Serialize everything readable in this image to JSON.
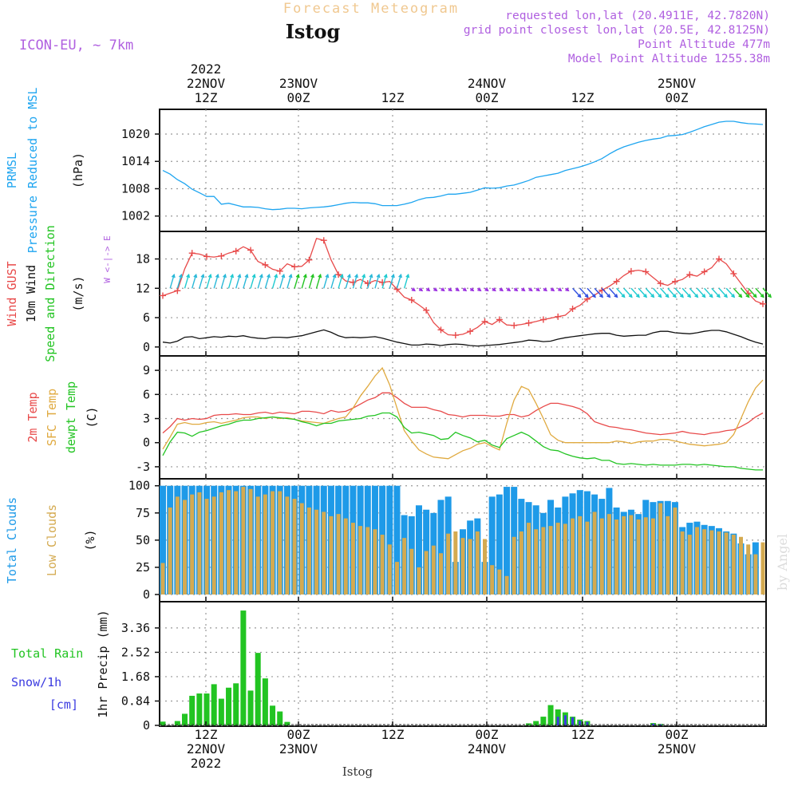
{
  "header": {
    "forecast_title": "Forecast Meteogram",
    "station": "Istog",
    "model": "ICON-EU, ~ 7km",
    "requested": "requested lon,lat (20.4911E, 42.7820N)",
    "gridpoint": "grid point closest lon,lat (20.5E, 42.8125N)",
    "point_alt": "Point Altitude 477m",
    "model_alt": "Model Point Altitude 1255.38m",
    "credit": "by Angel",
    "bottom_label": "Istog"
  },
  "colors": {
    "pressure": "#1ea5f0",
    "gust": "#e84a4a",
    "wind": "#111111",
    "arrows_n": "#1ecad0",
    "arrows_s": "#9a2de0",
    "temp": "#e84a4a",
    "sfc": "#e0aa40",
    "dew": "#22c422",
    "total_clouds": "#1e9ae8",
    "low_clouds": "#d4aa50",
    "rain": "#22c422",
    "snow": "#3a3ae0",
    "purple": "#b060e0",
    "orange": "#f0c890"
  },
  "chart_data": [
    {
      "type": "line",
      "panel": "pressure",
      "label_lines": [
        "PRMSL",
        "Pressure Reduced to MSL"
      ],
      "unit": "(hPa)",
      "ylim": [
        999.5,
        1023.5
      ],
      "yticks": [
        "1002",
        "1008",
        "1014",
        "1020"
      ],
      "ytick_values": [
        1002,
        1008,
        1014,
        1020
      ],
      "series": [
        {
          "name": "PRMSL",
          "values": [
            1012,
            1011.2,
            1010,
            1009.1,
            1007.9,
            1007.1,
            1006.3,
            1006.3,
            1004.6,
            1004.8,
            1004.4,
            1004.0,
            1004.0,
            1003.9,
            1003.6,
            1003.4,
            1003.5,
            1003.7,
            1003.7,
            1003.6,
            1003.8,
            1003.9,
            1004.0,
            1004.2,
            1004.5,
            1004.8,
            1005.0,
            1004.9,
            1004.9,
            1004.7,
            1004.3,
            1004.3,
            1004.3,
            1004.6,
            1005.0,
            1005.6,
            1006.0,
            1006.1,
            1006.4,
            1006.8,
            1006.8,
            1007.0,
            1007.2,
            1007.7,
            1008.2,
            1008.1,
            1008.2,
            1008.6,
            1008.8,
            1009.3,
            1009.8,
            1010.5,
            1010.8,
            1011.1,
            1011.4,
            1012.0,
            1012.4,
            1012.8,
            1013.3,
            1013.9,
            1014.6,
            1015.6,
            1016.5,
            1017.2,
            1017.7,
            1018.2,
            1018.6,
            1018.9,
            1019.1,
            1019.6,
            1019.7,
            1019.9,
            1020.4,
            1021.0,
            1021.6,
            1022.1,
            1022.6,
            1022.8,
            1022.8,
            1022.5,
            1022.3,
            1022.2,
            1022.1
          ]
        }
      ]
    },
    {
      "type": "line",
      "panel": "wind",
      "label_lines": [
        "Wind GUST",
        "10m Wind",
        "Speed and Direction"
      ],
      "unit": "(m/s)",
      "ylim": [
        -1.5,
        22
      ],
      "yticks": [
        "0",
        "6",
        "12",
        "18"
      ],
      "ytick_values": [
        0,
        6,
        12,
        18
      ],
      "compass": "W <-|-> E",
      "series": [
        {
          "name": "Wind GUST",
          "values": [
            10.5,
            11,
            11.5,
            16,
            19.2,
            19,
            18.5,
            18.4,
            18.6,
            19.2,
            19.6,
            20.5,
            19.8,
            17.5,
            16.8,
            15.9,
            15.5,
            17,
            16.4,
            16.5,
            17.8,
            22.2,
            21.8,
            17.8,
            14.8,
            13.5,
            13.2,
            13.8,
            13,
            13.6,
            13.2,
            13.4,
            11.8,
            10.2,
            9.6,
            8.6,
            7.5,
            5,
            3.5,
            2.5,
            2.4,
            2.6,
            3.2,
            4,
            5.2,
            4.6,
            5.6,
            4.5,
            4.4,
            4.6,
            4.9,
            5.2,
            5.6,
            5.9,
            6.2,
            6.5,
            7.8,
            8.5,
            9.8,
            10.6,
            11.6,
            12.4,
            13.4,
            14.6,
            15.5,
            15.7,
            15.4,
            14.2,
            13,
            12.6,
            13.4,
            13.8,
            14.8,
            14.5,
            15.4,
            16.2,
            18,
            17,
            15,
            13,
            11,
            9.4,
            8.8
          ]
        },
        {
          "name": "10m Wind",
          "values": [
            1,
            0.8,
            1.2,
            2,
            2.1,
            1.7,
            1.9,
            2.1,
            2,
            2.2,
            2.1,
            2.3,
            2,
            1.8,
            1.7,
            2,
            2,
            1.9,
            2.1,
            2.3,
            2.7,
            3.1,
            3.5,
            3,
            2.3,
            1.9,
            2,
            1.9,
            2,
            2.1,
            1.8,
            1.4,
            1,
            0.7,
            0.4,
            0.4,
            0.6,
            0.5,
            0.3,
            0.5,
            0.6,
            0.5,
            0.3,
            0.2,
            0.3,
            0.4,
            0.5,
            0.7,
            0.9,
            1.1,
            1.4,
            1.3,
            1.1,
            1.2,
            1.6,
            1.9,
            2.1,
            2.3,
            2.5,
            2.7,
            2.8,
            2.8,
            2.4,
            2.2,
            2.3,
            2.4,
            2.4,
            2.9,
            3.2,
            3.2,
            2.9,
            2.8,
            2.7,
            2.9,
            3.2,
            3.4,
            3.4,
            3.1,
            2.6,
            2.1,
            1.5,
            1,
            0.6
          ]
        }
      ]
    },
    {
      "type": "line",
      "panel": "temperature",
      "label_lines": [
        "2m Temp",
        "SFC Temp",
        "dewpt Temp"
      ],
      "unit": "(C)",
      "ylim": [
        -4.2,
        10.4
      ],
      "yticks": [
        "-3",
        "0",
        "3",
        "6",
        "9"
      ],
      "ytick_values": [
        -3,
        0,
        3,
        6,
        9
      ],
      "series": [
        {
          "name": "2m Temp",
          "values": [
            1.2,
            2,
            3,
            2.8,
            3,
            2.9,
            3,
            3.4,
            3.5,
            3.5,
            3.6,
            3.5,
            3.5,
            3.7,
            3.8,
            3.6,
            3.8,
            3.7,
            3.6,
            3.9,
            3.9,
            3.8,
            3.6,
            4,
            3.8,
            3.9,
            4.3,
            4.8,
            5.3,
            5.6,
            6.2,
            6.2,
            5.6,
            4.9,
            4.4,
            4.4,
            4.4,
            4.1,
            3.9,
            3.5,
            3.4,
            3.2,
            3.4,
            3.4,
            3.4,
            3.3,
            3.3,
            3.5,
            3.5,
            3.2,
            3.4,
            4,
            4.5,
            4.9,
            4.9,
            4.7,
            4.5,
            4.2,
            3.6,
            2.6,
            2.3,
            2.0,
            1.9,
            1.7,
            1.6,
            1.4,
            1.2,
            1.1,
            1.0,
            1.1,
            1.2,
            1.4,
            1.2,
            1.1,
            1.0,
            1.2,
            1.3,
            1.5,
            1.6,
            2.0,
            2.5,
            3.2,
            3.7
          ]
        },
        {
          "name": "SFC Temp",
          "values": [
            -0.8,
            0.7,
            2.3,
            2.5,
            2.3,
            2.3,
            2.5,
            2.6,
            2.4,
            2.6,
            2.8,
            3.1,
            3.2,
            3.2,
            3.0,
            3.2,
            3.0,
            3.1,
            2.9,
            2.7,
            2.6,
            2.5,
            2.4,
            2.7,
            3,
            3.2,
            4.3,
            5.8,
            7,
            8.3,
            9.3,
            7.2,
            4.3,
            1.5,
            0.2,
            -0.9,
            -1.4,
            -1.8,
            -1.9,
            -2.0,
            -1.5,
            -1.0,
            -0.7,
            -0.2,
            0.0,
            -0.5,
            -0.9,
            2.4,
            5.3,
            7.0,
            6.6,
            4.9,
            3.0,
            1.0,
            0.3,
            0.0,
            0.0,
            0.0,
            0.0,
            0.0,
            0.0,
            0.0,
            0.2,
            0.1,
            -0.1,
            0.1,
            0.2,
            0.2,
            0.4,
            0.4,
            0.2,
            0.0,
            -0.2,
            -0.3,
            -0.4,
            -0.3,
            -0.2,
            0.0,
            1.0,
            3.0,
            5.1,
            6.8,
            7.8
          ]
        },
        {
          "name": "dewpt Temp",
          "values": [
            -1.6,
            0.1,
            1.3,
            1.2,
            0.8,
            1.3,
            1.5,
            1.8,
            2.1,
            2.3,
            2.6,
            2.8,
            2.8,
            3.0,
            3.1,
            3.2,
            3.1,
            3.0,
            2.9,
            2.6,
            2.4,
            2.1,
            2.4,
            2.4,
            2.7,
            2.8,
            2.9,
            3.0,
            3.3,
            3.4,
            3.7,
            3.7,
            3.2,
            1.9,
            1.2,
            1.3,
            1.1,
            0.9,
            0.4,
            0.5,
            1.3,
            0.9,
            0.6,
            0.1,
            0.3,
            -0.3,
            -0.6,
            0.5,
            0.9,
            1.3,
            0.9,
            0.2,
            -0.5,
            -0.9,
            -1.0,
            -1.4,
            -1.7,
            -1.9,
            -2.0,
            -1.9,
            -2.2,
            -2.2,
            -2.6,
            -2.7,
            -2.6,
            -2.7,
            -2.8,
            -2.7,
            -2.8,
            -2.8,
            -2.8,
            -2.7,
            -2.7,
            -2.8,
            -2.7,
            -2.8,
            -2.9,
            -3.0,
            -3.0,
            -3.2,
            -3.3,
            -3.4,
            -3.4
          ]
        }
      ]
    },
    {
      "type": "bar",
      "panel": "clouds",
      "label_lines": [
        "Total Clouds",
        "Low Clouds"
      ],
      "unit": "(%)",
      "ylim": [
        0,
        102
      ],
      "yticks": [
        "0",
        "25",
        "50",
        "75",
        "100"
      ],
      "ytick_values": [
        0,
        25,
        50,
        75,
        100
      ],
      "series": [
        {
          "name": "Total Clouds",
          "values": [
            100,
            100,
            100,
            100,
            100,
            100,
            100,
            100,
            100,
            100,
            100,
            100,
            100,
            100,
            100,
            100,
            100,
            100,
            100,
            100,
            100,
            100,
            100,
            100,
            100,
            100,
            100,
            100,
            100,
            100,
            100,
            100,
            100,
            73,
            72,
            82,
            78,
            75,
            87,
            90,
            30,
            60,
            68,
            70,
            30,
            90,
            92,
            99,
            99,
            88,
            85,
            82,
            75,
            87,
            80,
            90,
            93,
            96,
            95,
            92,
            88,
            98,
            80,
            76,
            78,
            74,
            87,
            85,
            86,
            86,
            85,
            62,
            66,
            67,
            64,
            63,
            61,
            58,
            56,
            47,
            37,
            48,
            0
          ]
        },
        {
          "name": "Low Clouds",
          "values": [
            29,
            80,
            90,
            87,
            92,
            94,
            88,
            90,
            94,
            96,
            95,
            99,
            97,
            90,
            92,
            95,
            95,
            90,
            88,
            84,
            80,
            78,
            76,
            72,
            74,
            70,
            66,
            63,
            62,
            60,
            55,
            46,
            30,
            52,
            42,
            25,
            40,
            45,
            38,
            56,
            58,
            52,
            51,
            58,
            51,
            27,
            23,
            17,
            53,
            58,
            66,
            60,
            62,
            63,
            66,
            65,
            70,
            72,
            67,
            76,
            70,
            74,
            69,
            72,
            73,
            69,
            71,
            70,
            84,
            72,
            80,
            58,
            55,
            62,
            60,
            59,
            58,
            57,
            55,
            53,
            46,
            37,
            48
          ]
        }
      ]
    },
    {
      "type": "bar",
      "panel": "precip",
      "label_lines": [
        "Total  Rain",
        "Snow/1h",
        "[cm]"
      ],
      "unit": "1hr Precip (mm)",
      "ylim": [
        0,
        4.1
      ],
      "yticks": [
        "0",
        "0.84",
        "1.68",
        "2.52",
        "3.36"
      ],
      "ytick_values": [
        0,
        0.84,
        1.68,
        2.52,
        3.36
      ],
      "series": [
        {
          "name": "Total Rain",
          "values": [
            0.13,
            0,
            0.15,
            0.4,
            1.02,
            1.1,
            1.1,
            1.42,
            0.92,
            1.3,
            1.45,
            3.96,
            1.2,
            2.5,
            1.62,
            0.68,
            0.48,
            0.12,
            0,
            0,
            0,
            0,
            0,
            0,
            0,
            0,
            0,
            0,
            0,
            0,
            0,
            0,
            0,
            0,
            0,
            0,
            0,
            0,
            0,
            0,
            0,
            0,
            0,
            0,
            0,
            0,
            0,
            0,
            0,
            0,
            0.07,
            0.15,
            0.3,
            0.7,
            0.55,
            0.45,
            0.3,
            0.2,
            0.15,
            0,
            0,
            0,
            0,
            0,
            0,
            0,
            0,
            0.08,
            0.05,
            0,
            0,
            0,
            0,
            0,
            0,
            0,
            0,
            0,
            0,
            0,
            0,
            0,
            0
          ]
        },
        {
          "name": "Snow/1h",
          "values": [
            0,
            0,
            0,
            0,
            0,
            0,
            0,
            0,
            0,
            0,
            0,
            0,
            0,
            0,
            0,
            0,
            0,
            0,
            0,
            0,
            0,
            0,
            0,
            0,
            0,
            0,
            0,
            0,
            0,
            0,
            0,
            0,
            0,
            0,
            0,
            0,
            0,
            0,
            0,
            0,
            0,
            0,
            0,
            0,
            0,
            0,
            0,
            0,
            0,
            0,
            0,
            0,
            0,
            0,
            0.3,
            0.35,
            0.28,
            0.16,
            0.12,
            0,
            0,
            0,
            0,
            0,
            0,
            0,
            0,
            0.06,
            0.04,
            0,
            0,
            0,
            0,
            0,
            0,
            0,
            0,
            0,
            0,
            0,
            0,
            0,
            0
          ]
        }
      ]
    }
  ],
  "time_axis": {
    "top_ticks": [
      {
        "lines": [
          "2022",
          "22NOV",
          "12Z"
        ]
      },
      {
        "lines": [
          "23NOV",
          "00Z"
        ]
      },
      {
        "lines": [
          "12Z"
        ]
      },
      {
        "lines": [
          "24NOV",
          "00Z"
        ]
      },
      {
        "lines": [
          "12Z"
        ]
      },
      {
        "lines": [
          "25NOV",
          "00Z"
        ]
      }
    ],
    "bottom_ticks": [
      {
        "lines": [
          "12Z",
          "22NOV",
          "2022"
        ]
      },
      {
        "lines": [
          "00Z",
          "23NOV"
        ]
      },
      {
        "lines": [
          "12Z"
        ]
      },
      {
        "lines": [
          "00Z",
          "24NOV"
        ]
      },
      {
        "lines": [
          "12Z"
        ]
      },
      {
        "lines": [
          "00Z",
          "25NOV"
        ]
      }
    ]
  },
  "wind_direction": {
    "note": "arrow colour and tilt per time step",
    "codes": "NNNNNNNNNNNNNNNNNNNNNNNNNNNNNNNNNNSSSSSSSSSSSSSSSSSSSSSSSSSSSSSSSSSSSSSSSSSSSSSSSSS"
  }
}
